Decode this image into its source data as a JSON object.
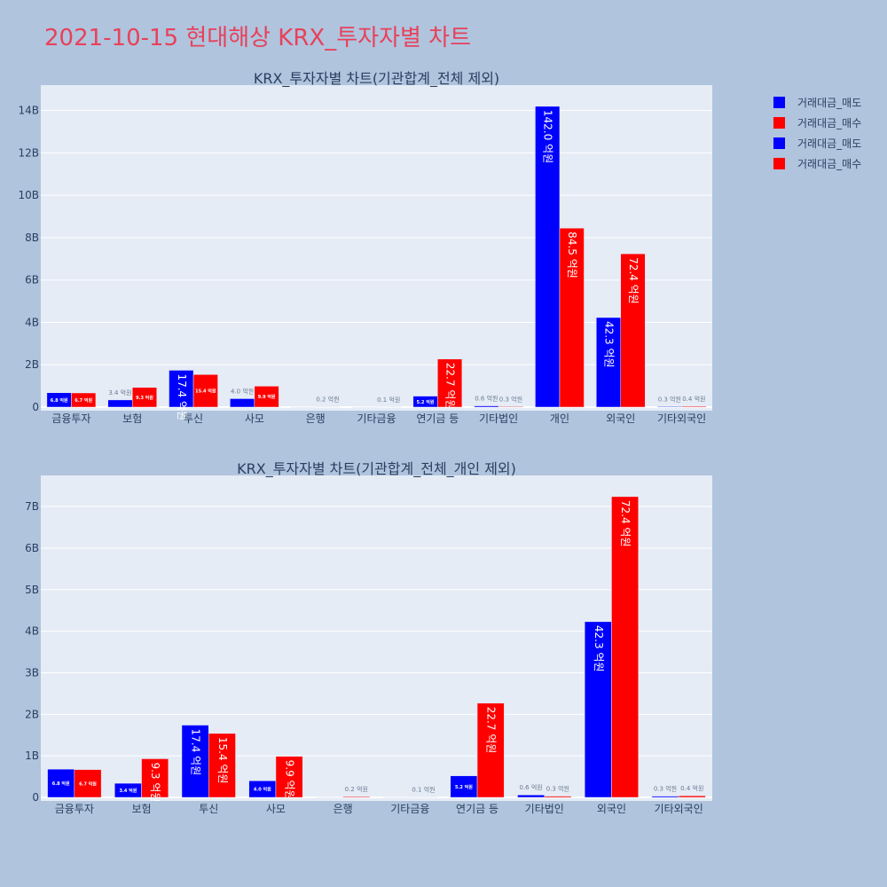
{
  "title": "2021-10-15 현대해상 KRX_투자자별 차트",
  "legend": [
    {
      "label": "거래대금_매도",
      "color": "#0000ff"
    },
    {
      "label": "거래대금_매수",
      "color": "#ff0000"
    },
    {
      "label": "거래대금_매도",
      "color": "#0000ff"
    },
    {
      "label": "거래대금_매수",
      "color": "#ff0000"
    }
  ],
  "chart_data": [
    {
      "type": "bar",
      "title": "KRX_투자자별 차트(기관합계_전체 제외)",
      "categories": [
        "금융투자",
        "보험",
        "투신",
        "사모",
        "은행",
        "기타금융",
        "연기금 등",
        "기타법인",
        "개인",
        "외국인",
        "기타외국인"
      ],
      "series": [
        {
          "name": "거래대금_매도",
          "color": "#0000ff",
          "values": [
            0.68,
            0.34,
            1.74,
            0.4,
            0.0,
            0.0,
            0.52,
            0.06,
            14.2,
            4.23,
            0.03
          ],
          "labels": [
            "6.8 억원",
            "3.4 억원",
            "17.4 억원",
            "4.0 억원",
            "",
            "",
            "5.2 억원",
            "0.6 억원",
            "142.0 억원",
            "42.3 억원",
            "0.3 억원"
          ]
        },
        {
          "name": "거래대금_매수",
          "color": "#ff0000",
          "values": [
            0.67,
            0.93,
            1.54,
            0.99,
            0.02,
            0.01,
            2.27,
            0.03,
            8.45,
            7.24,
            0.04
          ],
          "labels": [
            "6.7 억원",
            "9.3 억원",
            "15.4 억원",
            "9.9 억원",
            "0.2 억원",
            "0.1 억원",
            "22.7 억원",
            "0.3 억원",
            "84.5 억원",
            "72.4 억원",
            "0.4 억원"
          ]
        }
      ],
      "yticks": [
        "0",
        "2B",
        "4B",
        "6B",
        "8B",
        "10B",
        "12B",
        "14B"
      ],
      "ytick_values": [
        0,
        2,
        4,
        6,
        8,
        10,
        12,
        14
      ],
      "ylim": [
        0,
        15.2
      ]
    },
    {
      "type": "bar",
      "title": "KRX_투자자별 차트(기관합계_전체_개인 제외)",
      "categories": [
        "금융투자",
        "보험",
        "투신",
        "사모",
        "은행",
        "기타금융",
        "연기금 등",
        "기타법인",
        "외국인",
        "기타외국인"
      ],
      "series": [
        {
          "name": "거래대금_매도",
          "color": "#0000ff",
          "values": [
            0.68,
            0.34,
            1.74,
            0.4,
            0.0,
            0.0,
            0.52,
            0.06,
            4.23,
            0.03
          ],
          "labels": [
            "6.8 억원",
            "3.4 억원",
            "17.4 억원",
            "4.0 억원",
            "",
            "",
            "5.2 억원",
            "0.6 억원",
            "42.3 억원",
            "0.3 억원"
          ]
        },
        {
          "name": "거래대금_매수",
          "color": "#ff0000",
          "values": [
            0.67,
            0.93,
            1.54,
            0.99,
            0.02,
            0.01,
            2.27,
            0.03,
            7.24,
            0.04
          ],
          "labels": [
            "6.7 억원",
            "9.3 억원",
            "15.4 억원",
            "9.9 억원",
            "0.2 억원",
            "0.1 억원",
            "22.7 억원",
            "0.3 억원",
            "72.4 억원",
            "0.4 억원"
          ]
        }
      ],
      "yticks": [
        "0",
        "1B",
        "2B",
        "3B",
        "4B",
        "5B",
        "6B",
        "7B"
      ],
      "ytick_values": [
        0,
        1,
        2,
        3,
        4,
        5,
        6,
        7
      ],
      "ylim": [
        0,
        7.75
      ]
    }
  ]
}
